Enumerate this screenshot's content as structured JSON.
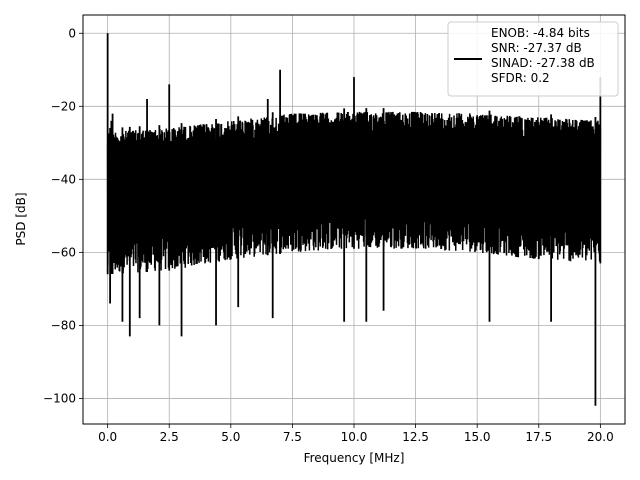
{
  "chart_data": {
    "type": "line",
    "title": "",
    "xlabel": "Frequency [MHz]",
    "ylabel": "PSD [dB]",
    "xlim": [
      -1.0,
      21.0
    ],
    "ylim": [
      -107,
      5
    ],
    "xticks": [
      0.0,
      2.5,
      5.0,
      7.5,
      10.0,
      12.5,
      15.0,
      17.5,
      20.0
    ],
    "xtick_labels": [
      "0.0",
      "2.5",
      "5.0",
      "7.5",
      "10.0",
      "12.5",
      "15.0",
      "17.5",
      "20.0"
    ],
    "yticks": [
      0,
      -20,
      -40,
      -60,
      -80,
      -100
    ],
    "ytick_labels": [
      "0",
      "−20",
      "−40",
      "−60",
      "−80",
      "−100"
    ],
    "grid": true,
    "legend": {
      "position": "top-right",
      "lines": [
        "ENOB: -4.84 bits",
        "SNR: -27.37 dB",
        "SINAD: -27.38 dB",
        "SFDR: 0.2"
      ]
    },
    "series": [
      {
        "color": "#000000",
        "noise_band_upper": [
          [
            0.0,
            -26
          ],
          [
            2.5,
            -25
          ],
          [
            5.0,
            -23
          ],
          [
            7.5,
            -21
          ],
          [
            10.0,
            -20.5
          ],
          [
            12.5,
            -20.5
          ],
          [
            15.0,
            -21
          ],
          [
            17.5,
            -22
          ],
          [
            20.0,
            -23
          ]
        ],
        "noise_band_lower": [
          [
            0.0,
            -66
          ],
          [
            2.5,
            -65
          ],
          [
            5.0,
            -62
          ],
          [
            7.5,
            -60
          ],
          [
            10.0,
            -59
          ],
          [
            12.5,
            -59
          ],
          [
            15.0,
            -60
          ],
          [
            17.5,
            -62
          ],
          [
            20.0,
            -63
          ]
        ],
        "peaks": [
          [
            0.0,
            0.0
          ],
          [
            0.15,
            -24
          ],
          [
            0.2,
            -22
          ],
          [
            1.6,
            -18
          ],
          [
            2.5,
            -14
          ],
          [
            6.5,
            -18
          ],
          [
            7.0,
            -10
          ],
          [
            10.0,
            -12
          ],
          [
            20.0,
            -12
          ]
        ],
        "dips": [
          [
            0.1,
            -74
          ],
          [
            0.6,
            -79
          ],
          [
            0.9,
            -83
          ],
          [
            1.3,
            -78
          ],
          [
            2.1,
            -80
          ],
          [
            3.0,
            -83
          ],
          [
            4.4,
            -80
          ],
          [
            5.3,
            -75
          ],
          [
            6.7,
            -78
          ],
          [
            9.6,
            -79
          ],
          [
            10.5,
            -79
          ],
          [
            11.2,
            -76
          ],
          [
            15.5,
            -79
          ],
          [
            18.0,
            -79
          ],
          [
            19.8,
            -102
          ]
        ]
      }
    ]
  }
}
